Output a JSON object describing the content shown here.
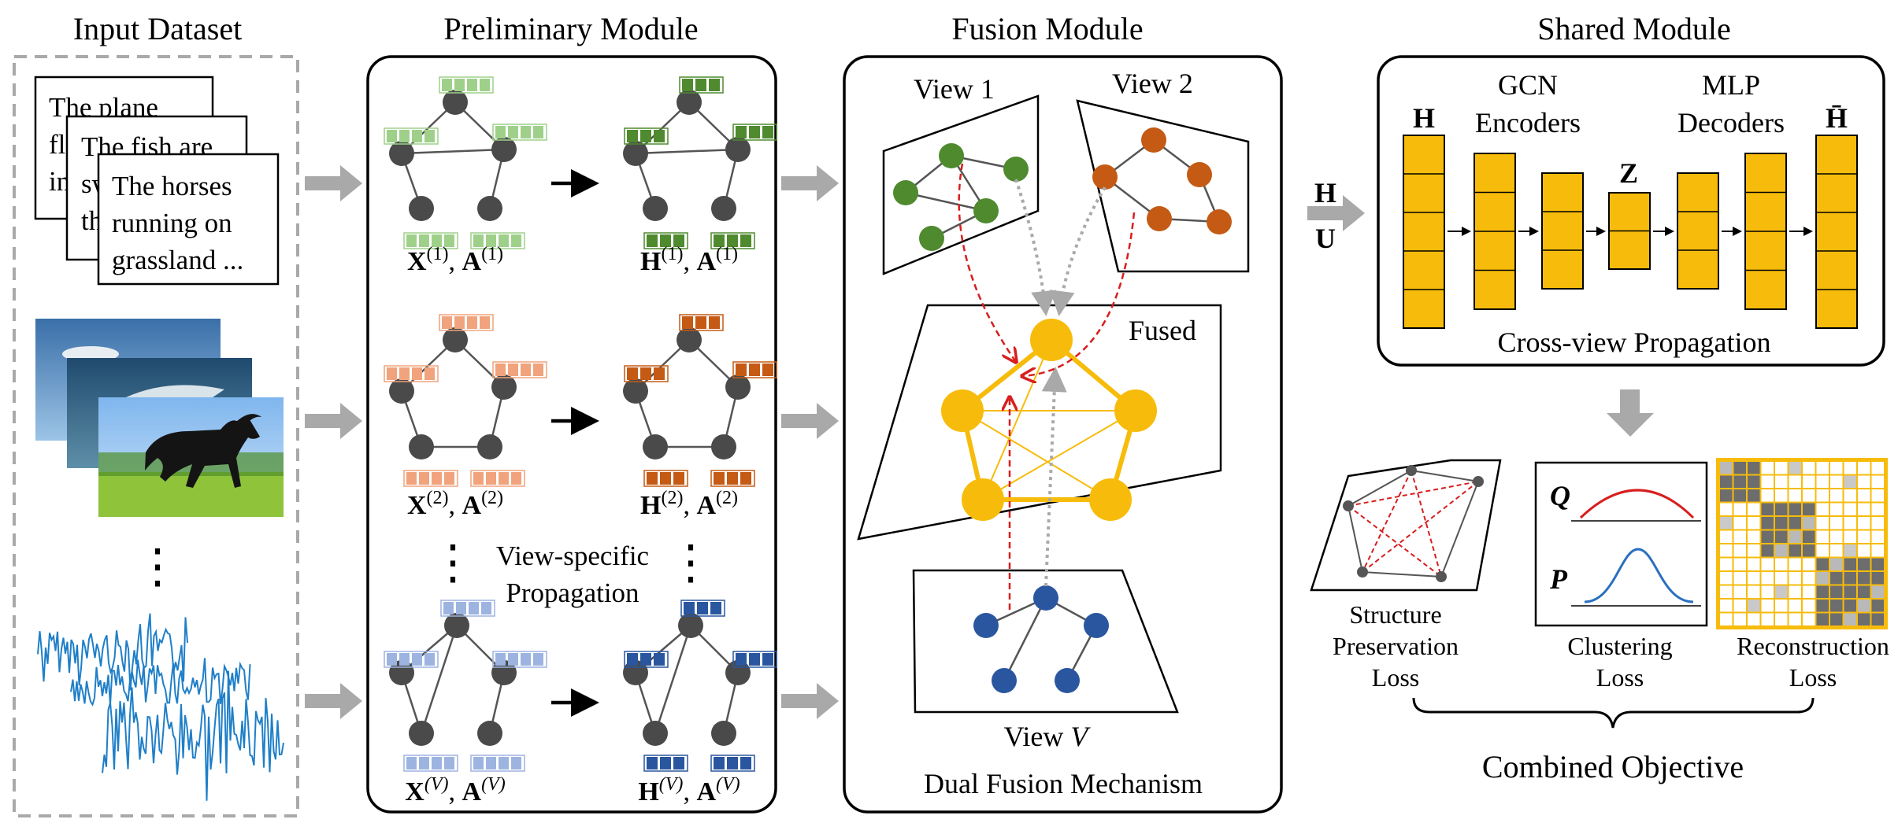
{
  "sections": {
    "input": "Input Dataset",
    "preliminary": "Preliminary Module",
    "fusion": "Fusion Module",
    "shared": "Shared Module"
  },
  "input_dataset": {
    "doc1": "The plane",
    "doc1_l2": "fl",
    "doc1_l3": "in",
    "doc2": "The fish are",
    "doc2_l2": "sw",
    "doc2_l3": "th",
    "doc3_l1": "The horses",
    "doc3_l2": "running on",
    "doc3_l3": "grassland ...",
    "ellipsis": "⋮"
  },
  "preliminary": {
    "rows": [
      {
        "x_sym": "X",
        "a_sym": "A",
        "sup": "(1)",
        "h_sym": "H"
      },
      {
        "x_sym": "X",
        "a_sym": "A",
        "sup": "(2)",
        "h_sym": "H"
      },
      {
        "x_sym": "X",
        "a_sym": "A",
        "sup": "(V)",
        "h_sym": "H"
      }
    ],
    "caption_l1": "View-specific",
    "caption_l2": "Propagation"
  },
  "fusion": {
    "view1": "View 1",
    "view2": "View 2",
    "fused": "Fused",
    "viewV_prefix": "View ",
    "viewV_var": "V",
    "caption": "Dual Fusion Mechanism"
  },
  "shared": {
    "h": "H",
    "gcn_l1": "GCN",
    "gcn_l2": "Encoders",
    "z": "Z",
    "mlp_l1": "MLP",
    "mlp_l2": "Decoders",
    "hbar": "H̄",
    "caption": "Cross-view Propagation",
    "input_h": "H",
    "input_u": "U"
  },
  "objective": {
    "structure_l1": "Structure",
    "structure_l2": "Preservation",
    "structure_l3": "Loss",
    "clustering_l1": "Clustering",
    "clustering_l2": "Loss",
    "q": "Q",
    "p": "P",
    "recon_l1": "Reconstruction",
    "recon_l2": "Loss",
    "combined": "Combined Objective"
  },
  "colors": {
    "green": "#4f8a2f",
    "green_light": "#9fd08a",
    "orange": "#c45a14",
    "orange_light": "#f0a37c",
    "blue": "#2a56a0",
    "blue_light": "#9db4e0",
    "gold": "#f7bc0b",
    "gray_node": "#4a4a4a",
    "arrow_gray": "#a9a9a9",
    "red": "#d81e1e",
    "wave": "#1f7fc8"
  }
}
